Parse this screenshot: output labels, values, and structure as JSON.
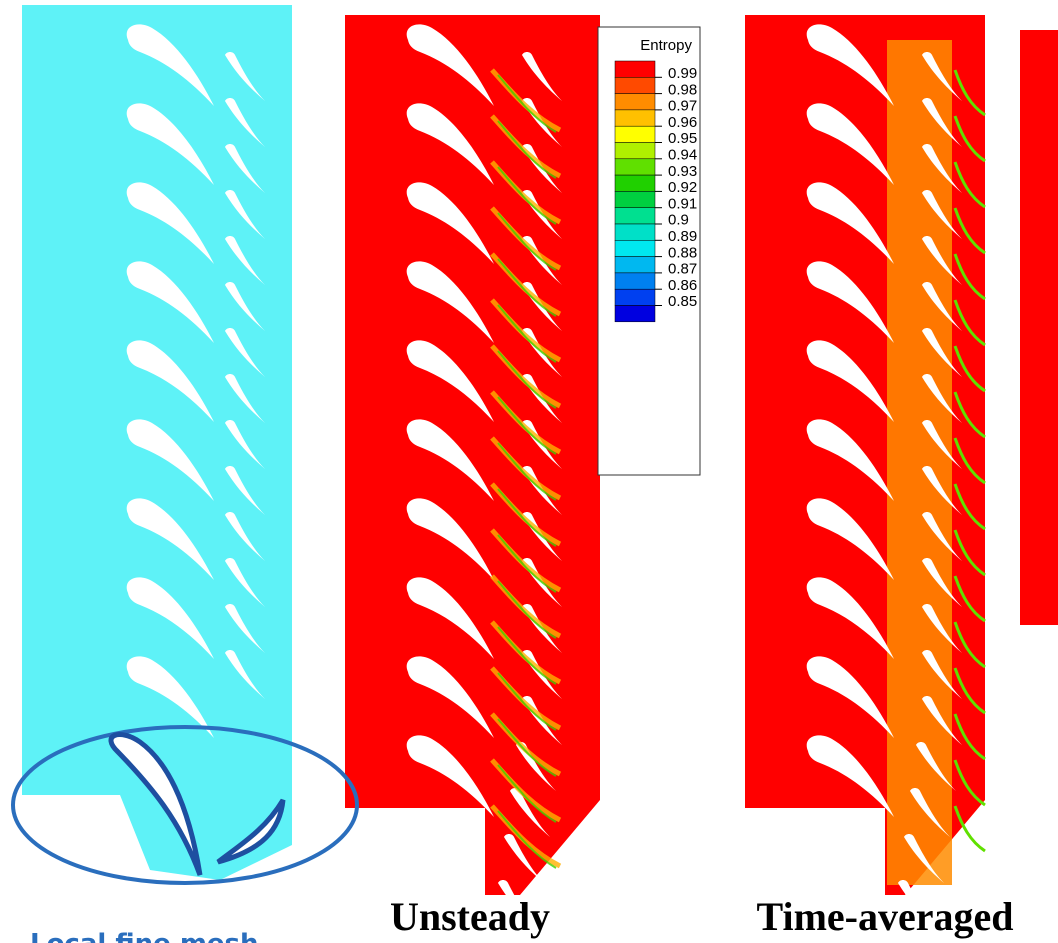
{
  "figure": {
    "legend": {
      "title": "Entropy",
      "levels": [
        {
          "label": "0.99",
          "color": "#ff0000"
        },
        {
          "label": "0.98",
          "color": "#ff4a00"
        },
        {
          "label": "0.97",
          "color": "#ff8c00"
        },
        {
          "label": "0.96",
          "color": "#ffc000"
        },
        {
          "label": "0.95",
          "color": "#ffff00"
        },
        {
          "label": "0.94",
          "color": "#b0f000"
        },
        {
          "label": "0.93",
          "color": "#60e000"
        },
        {
          "label": "0.92",
          "color": "#20d000"
        },
        {
          "label": "0.91",
          "color": "#00d040"
        },
        {
          "label": "0.9",
          "color": "#00e090"
        },
        {
          "label": "0.89",
          "color": "#00e0c8"
        },
        {
          "label": "0.88",
          "color": "#00e8f0"
        },
        {
          "label": "0.87",
          "color": "#00b8f0"
        },
        {
          "label": "0.86",
          "color": "#0080f0"
        },
        {
          "label": "0.85",
          "color": "#0040f0"
        },
        {
          "label": "",
          "color": "#0000e0"
        }
      ]
    },
    "panels": [
      {
        "label": "Local fine mesh"
      },
      {
        "label": "Unsteady"
      },
      {
        "label": "Time-averaged"
      }
    ]
  }
}
